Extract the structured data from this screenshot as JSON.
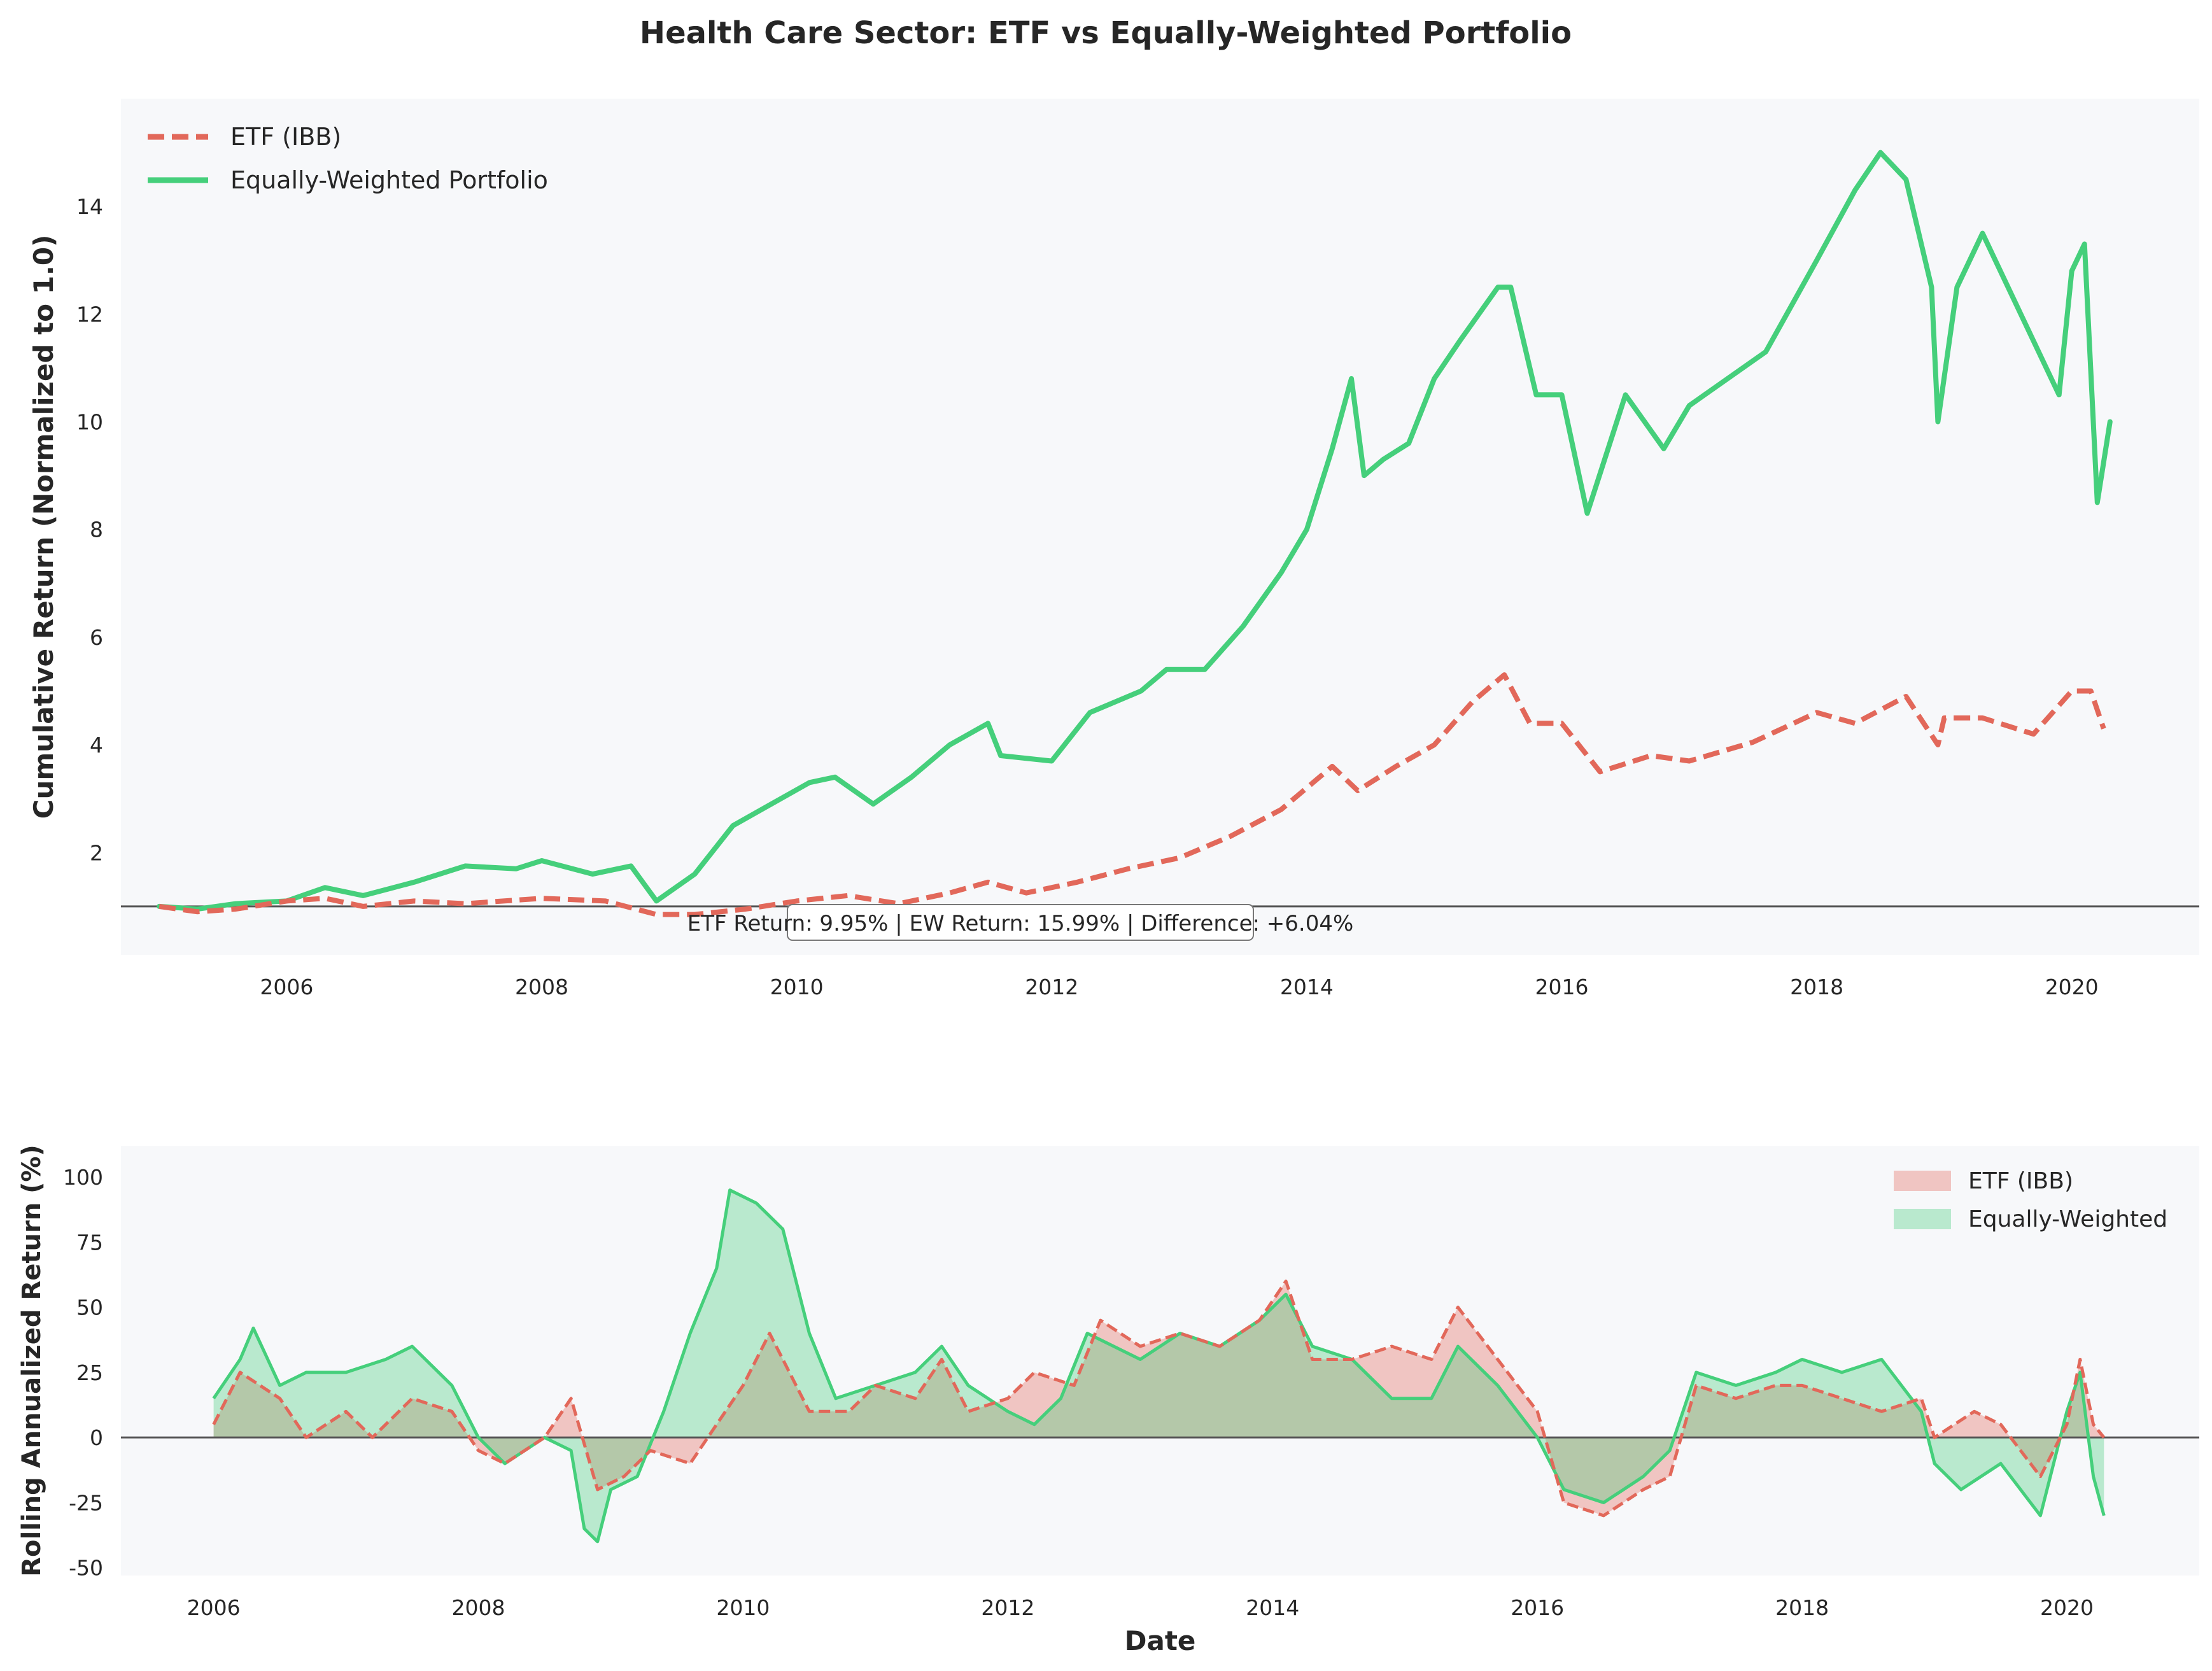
{
  "title": "Health Care Sector: ETF vs Equally-Weighted Portfolio",
  "colors": {
    "etf": "#e2685a",
    "ew": "#45cf7b",
    "background": "#f7f8fa",
    "baseline": "#555555"
  },
  "chart_data": [
    {
      "type": "line",
      "title": "",
      "xlabel": "",
      "ylabel": "Cumulative Return (Normalized to 1.0)",
      "xlim": [
        2004.7,
        2021.0
      ],
      "ylim": [
        0.1,
        16.0
      ],
      "x_ticks": [
        2006,
        2008,
        2010,
        2012,
        2014,
        2016,
        2018,
        2020
      ],
      "y_ticks": [
        2,
        4,
        6,
        8,
        10,
        12,
        14
      ],
      "grid": false,
      "legend_position": "top-left",
      "baseline": 1.0,
      "annotation": "ETF Return: 9.95% | EW Return: 15.99% | Difference: +6.04%",
      "series": [
        {
          "name": "ETF (IBB)",
          "style": "dashed",
          "x": [
            2005.0,
            2005.3,
            2005.6,
            2006.0,
            2006.3,
            2006.6,
            2007.0,
            2007.4,
            2008.0,
            2008.5,
            2008.9,
            2009.2,
            2009.6,
            2010.0,
            2010.4,
            2010.8,
            2011.2,
            2011.5,
            2011.8,
            2012.2,
            2012.6,
            2013.0,
            2013.4,
            2013.8,
            2014.2,
            2014.4,
            2014.7,
            2015.0,
            2015.3,
            2015.55,
            2015.75,
            2016.0,
            2016.3,
            2016.7,
            2017.0,
            2017.5,
            2018.0,
            2018.3,
            2018.7,
            2018.95,
            2019.0,
            2019.3,
            2019.7,
            2020.0,
            2020.15,
            2020.25
          ],
          "y": [
            1.0,
            0.9,
            0.95,
            1.1,
            1.15,
            1.0,
            1.1,
            1.05,
            1.15,
            1.1,
            0.85,
            0.85,
            0.95,
            1.1,
            1.2,
            1.05,
            1.25,
            1.45,
            1.25,
            1.45,
            1.7,
            1.9,
            2.3,
            2.8,
            3.6,
            3.15,
            3.6,
            4.0,
            4.8,
            5.3,
            4.4,
            4.4,
            3.5,
            3.8,
            3.7,
            4.05,
            4.6,
            4.4,
            4.9,
            4.0,
            4.5,
            4.5,
            4.2,
            5.0,
            5.0,
            4.3
          ]
        },
        {
          "name": "Equally-Weighted Portfolio",
          "style": "solid",
          "x": [
            2005.0,
            2005.3,
            2005.6,
            2006.0,
            2006.3,
            2006.6,
            2007.0,
            2007.4,
            2007.8,
            2008.0,
            2008.4,
            2008.7,
            2008.9,
            2009.2,
            2009.5,
            2009.8,
            2010.1,
            2010.3,
            2010.6,
            2010.9,
            2011.2,
            2011.5,
            2011.6,
            2012.0,
            2012.3,
            2012.7,
            2012.9,
            2013.2,
            2013.5,
            2013.8,
            2014.0,
            2014.2,
            2014.35,
            2014.45,
            2014.6,
            2014.8,
            2015.0,
            2015.2,
            2015.5,
            2015.6,
            2015.8,
            2016.0,
            2016.2,
            2016.5,
            2016.8,
            2017.0,
            2017.3,
            2017.6,
            2018.0,
            2018.3,
            2018.5,
            2018.7,
            2018.9,
            2018.95,
            2019.1,
            2019.3,
            2019.6,
            2019.9,
            2020.0,
            2020.1,
            2020.2,
            2020.3
          ],
          "y": [
            1.0,
            0.95,
            1.05,
            1.1,
            1.35,
            1.2,
            1.45,
            1.75,
            1.7,
            1.85,
            1.6,
            1.75,
            1.1,
            1.6,
            2.5,
            2.9,
            3.3,
            3.4,
            2.9,
            3.4,
            4.0,
            4.4,
            3.8,
            3.7,
            4.6,
            5.0,
            5.4,
            5.4,
            6.2,
            7.2,
            8.0,
            9.5,
            10.8,
            9.0,
            9.3,
            9.6,
            10.8,
            11.5,
            12.5,
            12.5,
            10.5,
            10.5,
            8.3,
            10.5,
            9.5,
            10.3,
            10.8,
            11.3,
            13.0,
            14.3,
            15.0,
            14.5,
            12.5,
            10.0,
            12.5,
            13.5,
            12.0,
            10.5,
            12.8,
            13.3,
            8.5,
            10.0
          ]
        }
      ]
    },
    {
      "type": "area",
      "title": "",
      "xlabel": "Date",
      "ylabel": "Rolling Annualized Return (%)",
      "xlim": [
        2005.3,
        2021.0
      ],
      "ylim": [
        -53,
        112
      ],
      "x_ticks": [
        2006,
        2008,
        2010,
        2012,
        2014,
        2016,
        2018,
        2020
      ],
      "y_ticks": [
        -50,
        -25,
        0,
        25,
        50,
        75,
        100
      ],
      "grid": false,
      "legend_position": "top-right",
      "baseline": 0,
      "series": [
        {
          "name": "ETF (IBB)",
          "style": "dashed",
          "x": [
            2006.0,
            2006.2,
            2006.5,
            2006.7,
            2007.0,
            2007.2,
            2007.5,
            2007.8,
            2008.0,
            2008.2,
            2008.5,
            2008.7,
            2008.9,
            2009.1,
            2009.3,
            2009.6,
            2009.8,
            2010.0,
            2010.2,
            2010.5,
            2010.8,
            2011.0,
            2011.3,
            2011.5,
            2011.7,
            2012.0,
            2012.2,
            2012.5,
            2012.7,
            2013.0,
            2013.3,
            2013.6,
            2013.9,
            2014.1,
            2014.3,
            2014.6,
            2014.9,
            2015.2,
            2015.4,
            2015.7,
            2016.0,
            2016.2,
            2016.5,
            2016.8,
            2017.0,
            2017.2,
            2017.5,
            2017.8,
            2018.0,
            2018.3,
            2018.6,
            2018.9,
            2019.0,
            2019.3,
            2019.5,
            2019.8,
            2020.0,
            2020.1,
            2020.2,
            2020.28
          ],
          "y": [
            5,
            25,
            15,
            0,
            10,
            0,
            15,
            10,
            -5,
            -10,
            0,
            15,
            -20,
            -15,
            -5,
            -10,
            5,
            20,
            40,
            10,
            10,
            20,
            15,
            30,
            10,
            15,
            25,
            20,
            45,
            35,
            40,
            35,
            45,
            60,
            30,
            30,
            35,
            30,
            50,
            30,
            10,
            -25,
            -30,
            -20,
            -15,
            20,
            15,
            20,
            20,
            15,
            10,
            15,
            0,
            10,
            5,
            -15,
            5,
            30,
            5,
            0
          ]
        },
        {
          "name": "Equally-Weighted",
          "style": "solid",
          "x": [
            2006.0,
            2006.2,
            2006.3,
            2006.5,
            2006.7,
            2007.0,
            2007.3,
            2007.5,
            2007.8,
            2008.0,
            2008.2,
            2008.5,
            2008.7,
            2008.8,
            2008.9,
            2009.0,
            2009.2,
            2009.4,
            2009.6,
            2009.8,
            2009.9,
            2010.1,
            2010.3,
            2010.5,
            2010.7,
            2011.0,
            2011.3,
            2011.5,
            2011.7,
            2012.0,
            2012.2,
            2012.4,
            2012.6,
            2012.8,
            2013.0,
            2013.3,
            2013.6,
            2013.9,
            2014.1,
            2014.3,
            2014.6,
            2014.9,
            2015.2,
            2015.4,
            2015.7,
            2016.0,
            2016.2,
            2016.5,
            2016.8,
            2017.0,
            2017.2,
            2017.5,
            2017.8,
            2018.0,
            2018.3,
            2018.6,
            2018.9,
            2019.0,
            2019.2,
            2019.5,
            2019.8,
            2020.0,
            2020.1,
            2020.2,
            2020.28
          ],
          "y": [
            15,
            30,
            42,
            20,
            25,
            25,
            30,
            35,
            20,
            0,
            -10,
            0,
            -5,
            -35,
            -40,
            -20,
            -15,
            10,
            40,
            65,
            95,
            90,
            80,
            40,
            15,
            20,
            25,
            35,
            20,
            10,
            5,
            15,
            40,
            35,
            30,
            40,
            35,
            45,
            55,
            35,
            30,
            15,
            15,
            35,
            20,
            0,
            -20,
            -25,
            -15,
            -5,
            25,
            20,
            25,
            30,
            25,
            30,
            10,
            -10,
            -20,
            -10,
            -30,
            10,
            25,
            -15,
            -30
          ]
        }
      ]
    }
  ]
}
